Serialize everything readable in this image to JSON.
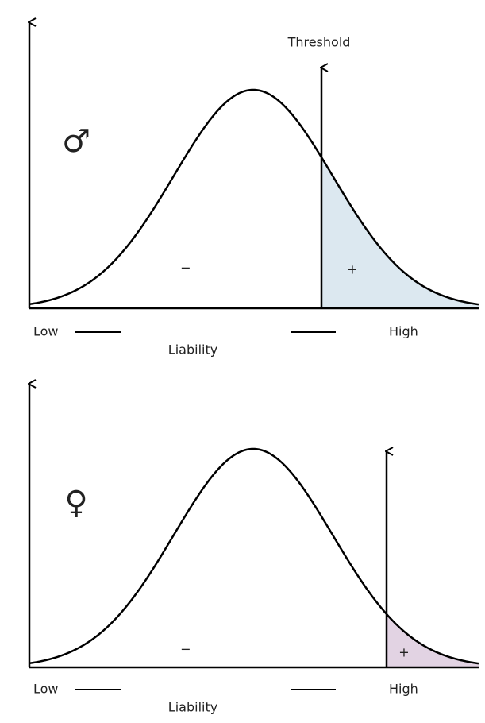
{
  "panels": [
    {
      "symbol": "♂",
      "threshold_label": "Threshold",
      "below": "−",
      "above": "+",
      "low": "Low",
      "high": "High",
      "axis_label": "Liability"
    },
    {
      "symbol": "♀",
      "below": "−",
      "above": "+",
      "low": "Low",
      "high": "High",
      "axis_label": "Liability"
    }
  ]
}
